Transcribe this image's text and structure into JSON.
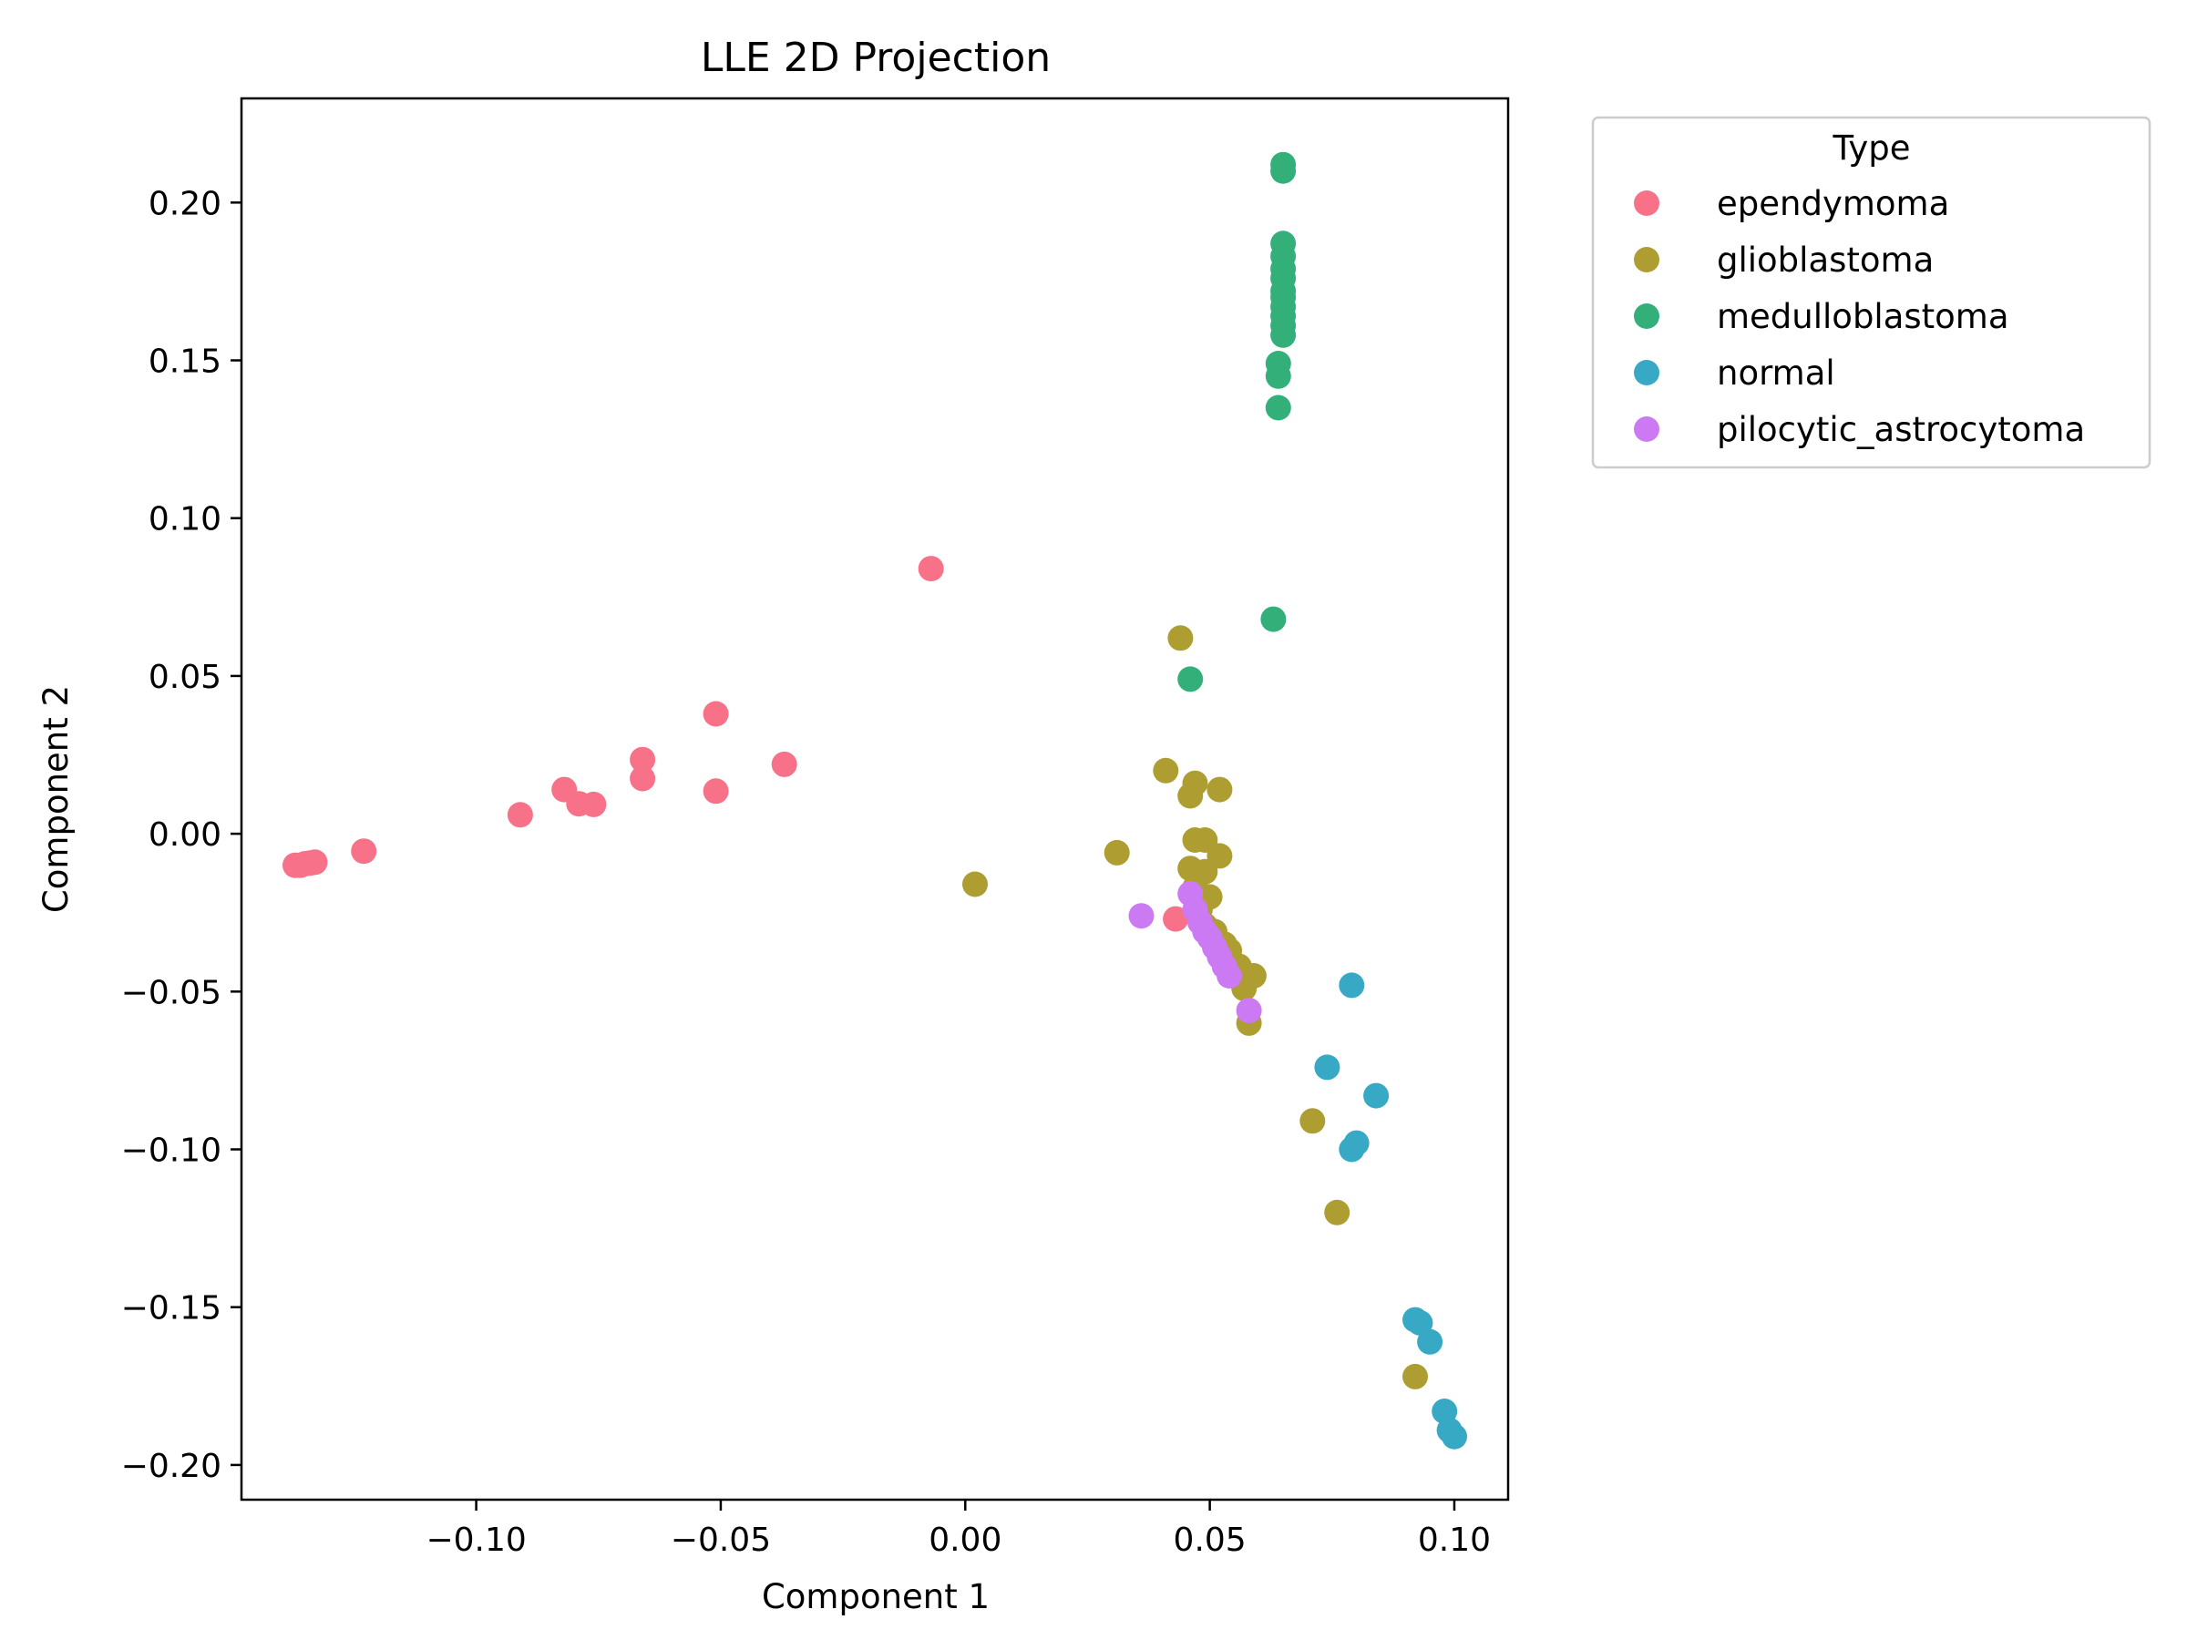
{
  "chart_data": {
    "type": "scatter",
    "title": "LLE 2D Projection",
    "xlabel": "Component 1",
    "ylabel": "Component 2",
    "xlim": [
      -0.148,
      0.111
    ],
    "ylim": [
      -0.211,
      0.233
    ],
    "xticks": [
      {
        "value": -0.1,
        "label": "−0.10"
      },
      {
        "value": -0.05,
        "label": "−0.05"
      },
      {
        "value": 0.0,
        "label": "0.00"
      },
      {
        "value": 0.05,
        "label": "0.05"
      },
      {
        "value": 0.1,
        "label": "0.10"
      }
    ],
    "yticks": [
      {
        "value": 0.2,
        "label": "0.20"
      },
      {
        "value": 0.15,
        "label": "0.15"
      },
      {
        "value": 0.1,
        "label": "0.10"
      },
      {
        "value": 0.05,
        "label": "0.05"
      },
      {
        "value": 0.0,
        "label": "0.00"
      },
      {
        "value": -0.05,
        "label": "−0.05"
      },
      {
        "value": -0.1,
        "label": "−0.10"
      },
      {
        "value": -0.15,
        "label": "−0.15"
      },
      {
        "value": -0.2,
        "label": "−0.20"
      }
    ],
    "grid": false,
    "legend": {
      "title": "Type",
      "position": "outside-upper-right"
    },
    "series": [
      {
        "name": "ependymoma",
        "color": "#f77189",
        "points": [
          [
            -0.137,
            -0.01
          ],
          [
            -0.136,
            -0.01
          ],
          [
            -0.135,
            -0.0095
          ],
          [
            -0.134,
            -0.0093
          ],
          [
            -0.133,
            -0.009
          ],
          [
            -0.123,
            -0.0055
          ],
          [
            -0.091,
            0.006
          ],
          [
            -0.082,
            0.014
          ],
          [
            -0.079,
            0.0095
          ],
          [
            -0.076,
            0.0093
          ],
          [
            -0.066,
            0.0235
          ],
          [
            -0.066,
            0.0175
          ],
          [
            -0.051,
            0.038
          ],
          [
            -0.051,
            0.0135
          ],
          [
            -0.037,
            0.022
          ],
          [
            -0.007,
            0.084
          ],
          [
            0.043,
            -0.027
          ]
        ]
      },
      {
        "name": "glioblastoma",
        "color": "#ae9d31",
        "points": [
          [
            0.044,
            0.062
          ],
          [
            0.041,
            0.02
          ],
          [
            0.047,
            0.016
          ],
          [
            0.046,
            0.012
          ],
          [
            0.052,
            0.014
          ],
          [
            0.031,
            -0.006
          ],
          [
            0.002,
            -0.016
          ],
          [
            0.047,
            -0.002
          ],
          [
            0.049,
            -0.002
          ],
          [
            0.052,
            -0.007
          ],
          [
            0.046,
            -0.011
          ],
          [
            0.049,
            -0.012
          ],
          [
            0.047,
            -0.017
          ],
          [
            0.05,
            -0.02
          ],
          [
            0.048,
            -0.024
          ],
          [
            0.049,
            -0.029
          ],
          [
            0.051,
            -0.031
          ],
          [
            0.053,
            -0.035
          ],
          [
            0.054,
            -0.037
          ],
          [
            0.056,
            -0.042
          ],
          [
            0.059,
            -0.045
          ],
          [
            0.057,
            -0.049
          ],
          [
            0.058,
            -0.06
          ],
          [
            0.071,
            -0.091
          ],
          [
            0.076,
            -0.12
          ],
          [
            0.092,
            -0.172
          ]
        ]
      },
      {
        "name": "medulloblastoma",
        "color": "#33b07a",
        "points": [
          [
            0.065,
            0.212
          ],
          [
            0.065,
            0.21
          ],
          [
            0.065,
            0.187
          ],
          [
            0.065,
            0.183
          ],
          [
            0.065,
            0.179
          ],
          [
            0.065,
            0.176
          ],
          [
            0.065,
            0.172
          ],
          [
            0.065,
            0.17
          ],
          [
            0.065,
            0.167
          ],
          [
            0.065,
            0.164
          ],
          [
            0.065,
            0.161
          ],
          [
            0.065,
            0.158
          ],
          [
            0.064,
            0.149
          ],
          [
            0.064,
            0.145
          ],
          [
            0.064,
            0.135
          ],
          [
            0.063,
            0.068
          ],
          [
            0.046,
            0.049
          ]
        ]
      },
      {
        "name": "normal",
        "color": "#38a9c5",
        "points": [
          [
            0.079,
            -0.048
          ],
          [
            0.074,
            -0.074
          ],
          [
            0.084,
            -0.083
          ],
          [
            0.08,
            -0.098
          ],
          [
            0.079,
            -0.1
          ],
          [
            0.092,
            -0.154
          ],
          [
            0.093,
            -0.155
          ],
          [
            0.095,
            -0.161
          ],
          [
            0.098,
            -0.183
          ],
          [
            0.099,
            -0.189
          ],
          [
            0.1,
            -0.191
          ]
        ]
      },
      {
        "name": "pilocytic_astrocytoma",
        "color": "#cc7af4",
        "points": [
          [
            0.036,
            -0.026
          ],
          [
            0.046,
            -0.019
          ],
          [
            0.047,
            -0.024
          ],
          [
            0.048,
            -0.028
          ],
          [
            0.049,
            -0.031
          ],
          [
            0.05,
            -0.033
          ],
          [
            0.051,
            -0.036
          ],
          [
            0.052,
            -0.039
          ],
          [
            0.053,
            -0.042
          ],
          [
            0.054,
            -0.045
          ],
          [
            0.058,
            -0.056
          ]
        ]
      }
    ]
  }
}
